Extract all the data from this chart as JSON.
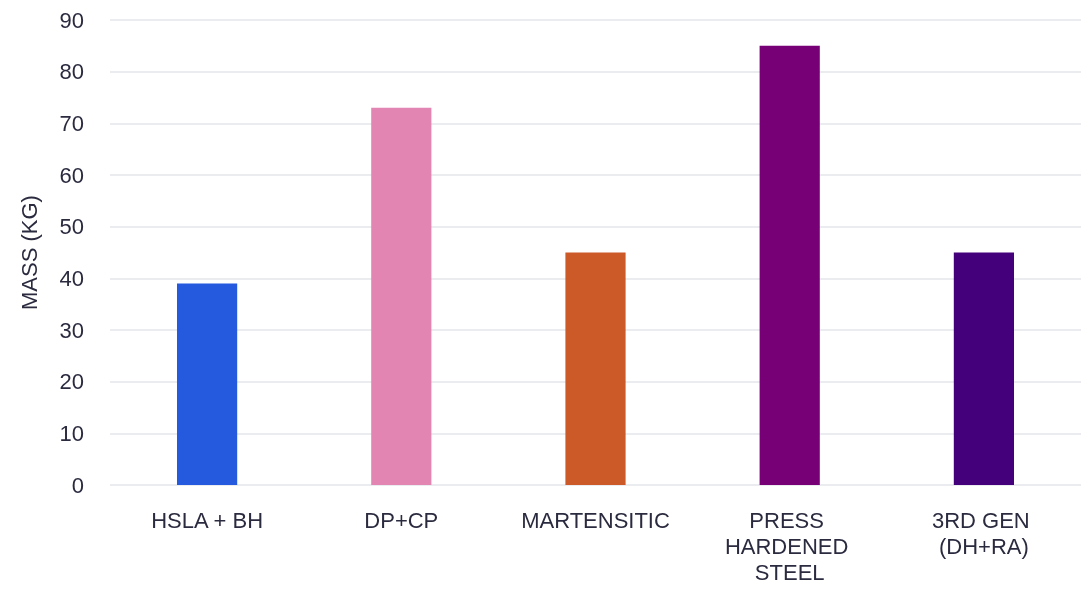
{
  "chart_data": {
    "type": "bar",
    "ylabel": "MASS (KG)",
    "categories": [
      "HSLA + BH",
      "DP+CP",
      "MARTENSITIC",
      "PRESS HARDENED STEEL",
      "3RD GEN (DH+RA)"
    ],
    "values": [
      39,
      73,
      45,
      85,
      45
    ],
    "colors": [
      "#255ade",
      "#e385b2",
      "#cb5a28",
      "#770077",
      "#43007a"
    ],
    "ylim": [
      0,
      90
    ],
    "yticks": [
      0,
      10,
      20,
      30,
      40,
      50,
      60,
      70,
      80,
      90
    ],
    "grid": "y"
  }
}
